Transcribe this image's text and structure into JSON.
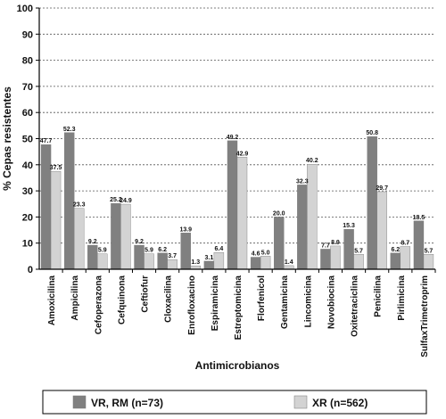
{
  "chart_data": {
    "type": "bar",
    "title": "",
    "xlabel": "Antimicrobianos",
    "ylabel": "% Cepas resistentes",
    "ylim": [
      0,
      100
    ],
    "yticks": [
      0,
      10,
      20,
      30,
      40,
      50,
      60,
      70,
      80,
      90,
      100
    ],
    "grid": "horizontal-dashed",
    "legend_position": "bottom",
    "categories": [
      "Amoxicilina",
      "Ampicilina",
      "Cefoperazona",
      "Cefquinona",
      "Ceftiofur",
      "Cloxacilina",
      "Enrofloxacino",
      "Espiramicina",
      "Estreptomicina",
      "Florfenicol",
      "Gentamicina",
      "Lincomicina",
      "Novobiocina",
      "Oxitetraciclina",
      "Penicilina",
      "Pirlimicina",
      "SulfaxTrimetroprim"
    ],
    "series": [
      {
        "name": "VR, RM (n=73)",
        "color": "#808080",
        "values": [
          47.7,
          52.3,
          9.2,
          25.2,
          9.2,
          6.2,
          13.9,
          3.1,
          49.2,
          4.6,
          20.0,
          32.3,
          7.7,
          15.3,
          50.8,
          6.2,
          18.5
        ],
        "labels": [
          "47.7",
          "52.3",
          "9.2",
          "25.2",
          "9.2",
          "6.2",
          "13.9",
          "3.1",
          "49.2",
          "4.6",
          "20.0",
          "32.3",
          "7.7",
          "15.3",
          "50.8",
          "6.2",
          "18.5"
        ]
      },
      {
        "name": "XR (n=562)",
        "color": "#d3d3d3",
        "values": [
          37.5,
          23.3,
          5.9,
          24.9,
          5.9,
          3.7,
          1.3,
          6.4,
          42.9,
          5.0,
          1.4,
          40.2,
          8.9,
          5.7,
          29.7,
          8.7,
          5.7
        ],
        "labels": [
          "37.5",
          "23.3",
          "5.9",
          "24.9",
          "5.9",
          "3.7",
          "1.3",
          "6.4",
          "42.9",
          "5.0",
          "1.4",
          "40.2",
          "8.9",
          "5.7",
          "29.7",
          "8.7",
          "5.7"
        ]
      }
    ]
  }
}
